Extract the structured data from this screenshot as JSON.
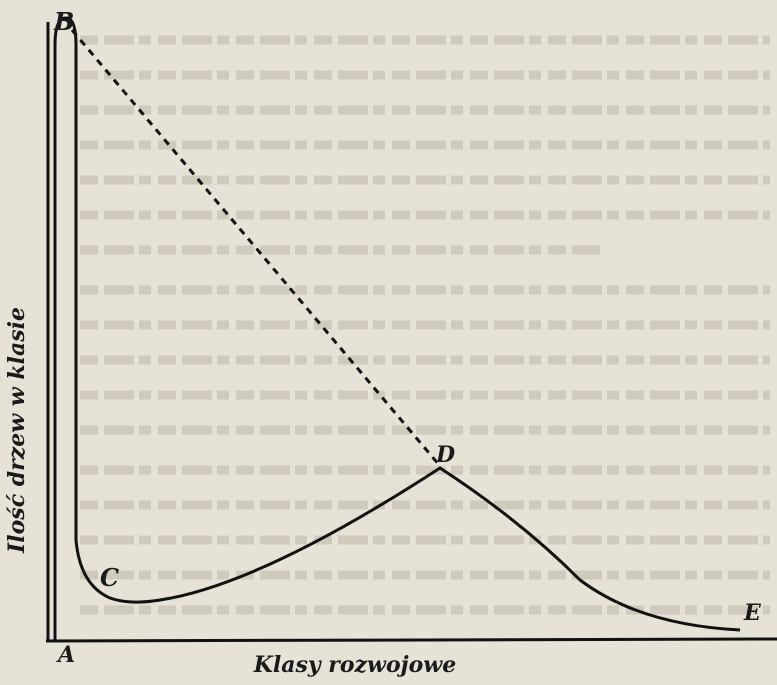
{
  "diagram": {
    "points": {
      "a": "A",
      "b": "B",
      "c": "C",
      "d": "D",
      "e": "E"
    },
    "y_axis_label": "Ilość drzew w klasie",
    "x_axis_label": "Klasy rozwojowe"
  }
}
